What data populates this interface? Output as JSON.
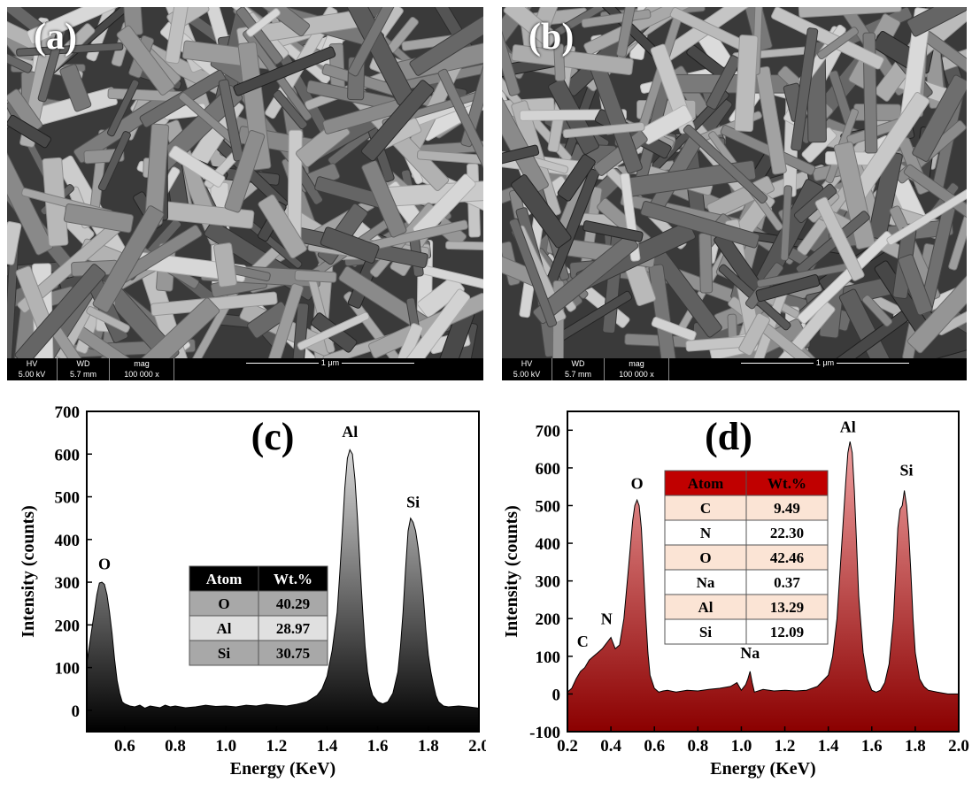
{
  "sem_panels": [
    {
      "label": "(a)",
      "databar": {
        "hv_label": "HV",
        "hv_value": "5.00 kV",
        "wd_label": "WD",
        "wd_value": "5.7 mm",
        "mag_label": "mag",
        "mag_value": "100 000 x",
        "scale": "1 μm"
      }
    },
    {
      "label": "(b)",
      "databar": {
        "hv_label": "HV",
        "hv_value": "5.00 kV",
        "wd_label": "WD",
        "wd_value": "5.7 mm",
        "mag_label": "mag",
        "mag_value": "100 000 x",
        "scale": "1 μm"
      }
    }
  ],
  "chart_data": [
    {
      "type": "area",
      "panel": "(c)",
      "xlabel": "Energy (KeV)",
      "ylabel": "Intensity (counts)",
      "xlim": [
        0.45,
        2.0
      ],
      "ylim": [
        -50,
        700
      ],
      "xticks": [
        0.6,
        0.8,
        1.0,
        1.2,
        1.4,
        1.6,
        1.8,
        2.0
      ],
      "yticks": [
        0,
        100,
        200,
        300,
        400,
        500,
        600,
        700
      ],
      "fill": "gray-gradient",
      "colors": {
        "top": "#d8d8d8",
        "bottom": "#000000",
        "stroke": "#000000"
      },
      "x": [
        0.45,
        0.46,
        0.47,
        0.48,
        0.49,
        0.5,
        0.51,
        0.52,
        0.53,
        0.54,
        0.55,
        0.56,
        0.57,
        0.58,
        0.59,
        0.6,
        0.62,
        0.64,
        0.66,
        0.68,
        0.7,
        0.72,
        0.74,
        0.76,
        0.78,
        0.8,
        0.84,
        0.88,
        0.92,
        0.96,
        1.0,
        1.04,
        1.08,
        1.12,
        1.16,
        1.2,
        1.24,
        1.28,
        1.32,
        1.36,
        1.38,
        1.4,
        1.42,
        1.44,
        1.45,
        1.46,
        1.47,
        1.48,
        1.49,
        1.5,
        1.51,
        1.52,
        1.53,
        1.54,
        1.55,
        1.56,
        1.57,
        1.58,
        1.6,
        1.62,
        1.64,
        1.66,
        1.68,
        1.69,
        1.7,
        1.71,
        1.72,
        1.73,
        1.74,
        1.75,
        1.76,
        1.77,
        1.78,
        1.79,
        1.8,
        1.81,
        1.82,
        1.83,
        1.84,
        1.86,
        1.88,
        1.92,
        1.96,
        2.0
      ],
      "y": [
        110,
        150,
        190,
        230,
        270,
        298,
        300,
        295,
        270,
        230,
        180,
        120,
        70,
        40,
        20,
        15,
        10,
        8,
        12,
        5,
        10,
        8,
        6,
        12,
        8,
        10,
        6,
        8,
        12,
        9,
        10,
        8,
        12,
        10,
        14,
        12,
        10,
        14,
        20,
        35,
        50,
        80,
        140,
        230,
        320,
        420,
        520,
        590,
        610,
        600,
        540,
        450,
        340,
        240,
        150,
        90,
        55,
        35,
        20,
        15,
        20,
        40,
        90,
        150,
        230,
        330,
        420,
        450,
        440,
        420,
        380,
        330,
        270,
        190,
        130,
        90,
        60,
        35,
        20,
        10,
        8,
        10,
        8,
        5
      ],
      "peak_labels": [
        {
          "text": "O",
          "x": 0.52,
          "y": 330
        },
        {
          "text": "Al",
          "x": 1.49,
          "y": 640
        },
        {
          "text": "Si",
          "x": 1.74,
          "y": 475
        }
      ],
      "table": {
        "headers": [
          "Atom",
          "Wt.%"
        ],
        "rows": [
          [
            "O",
            "40.29"
          ],
          [
            "Al",
            "28.97"
          ],
          [
            "Si",
            "30.75"
          ]
        ],
        "colors": {
          "header_bg": "#000000",
          "header_fg": "#ffffff",
          "row_bg": [
            "#a8a8a8",
            "#e0e0e0",
            "#a8a8a8"
          ]
        }
      }
    },
    {
      "type": "area",
      "panel": "(d)",
      "xlabel": "Energy (KeV)",
      "ylabel": "Intensity (counts)",
      "xlim": [
        0.2,
        2.0
      ],
      "ylim": [
        -100,
        750
      ],
      "xticks": [
        0.2,
        0.4,
        0.6,
        0.8,
        1.0,
        1.2,
        1.4,
        1.6,
        1.8,
        2.0
      ],
      "yticks": [
        -100,
        0,
        100,
        200,
        300,
        400,
        500,
        600,
        700
      ],
      "fill": "red-gradient",
      "colors": {
        "top": "#f0a0a0",
        "bottom": "#8b0000",
        "stroke": "#000000"
      },
      "x": [
        0.2,
        0.22,
        0.24,
        0.26,
        0.28,
        0.3,
        0.32,
        0.34,
        0.36,
        0.38,
        0.4,
        0.42,
        0.44,
        0.46,
        0.48,
        0.5,
        0.51,
        0.52,
        0.53,
        0.54,
        0.55,
        0.56,
        0.57,
        0.58,
        0.6,
        0.62,
        0.64,
        0.66,
        0.7,
        0.75,
        0.8,
        0.85,
        0.9,
        0.95,
        0.98,
        1.0,
        1.02,
        1.03,
        1.04,
        1.05,
        1.06,
        1.1,
        1.15,
        1.2,
        1.25,
        1.3,
        1.35,
        1.4,
        1.42,
        1.44,
        1.46,
        1.48,
        1.49,
        1.5,
        1.51,
        1.52,
        1.53,
        1.54,
        1.56,
        1.58,
        1.6,
        1.62,
        1.64,
        1.66,
        1.68,
        1.7,
        1.71,
        1.72,
        1.73,
        1.74,
        1.75,
        1.76,
        1.77,
        1.78,
        1.79,
        1.8,
        1.82,
        1.84,
        1.86,
        1.9,
        1.95,
        2.0
      ],
      "y": [
        5,
        15,
        40,
        60,
        70,
        90,
        100,
        110,
        120,
        135,
        150,
        120,
        130,
        200,
        330,
        460,
        500,
        515,
        500,
        440,
        330,
        210,
        110,
        50,
        15,
        5,
        8,
        10,
        5,
        10,
        8,
        12,
        15,
        20,
        30,
        10,
        25,
        40,
        60,
        30,
        5,
        12,
        8,
        10,
        8,
        10,
        20,
        50,
        100,
        200,
        380,
        560,
        640,
        670,
        640,
        540,
        400,
        260,
        110,
        40,
        10,
        5,
        10,
        30,
        80,
        200,
        320,
        440,
        490,
        500,
        540,
        500,
        430,
        320,
        200,
        110,
        40,
        20,
        10,
        5,
        0,
        0
      ],
      "peak_labels": [
        {
          "text": "C",
          "x": 0.27,
          "y": 125
        },
        {
          "text": "N",
          "x": 0.38,
          "y": 185
        },
        {
          "text": "O",
          "x": 0.52,
          "y": 545
        },
        {
          "text": "Na",
          "x": 1.04,
          "y": 95
        },
        {
          "text": "Al",
          "x": 1.49,
          "y": 695
        },
        {
          "text": "Si",
          "x": 1.76,
          "y": 580
        }
      ],
      "table": {
        "headers": [
          "Atom",
          "Wt.%"
        ],
        "rows": [
          [
            "C",
            "9.49"
          ],
          [
            "N",
            "22.30"
          ],
          [
            "O",
            "42.46"
          ],
          [
            "Na",
            "0.37"
          ],
          [
            "Al",
            "13.29"
          ],
          [
            "Si",
            "12.09"
          ]
        ],
        "colors": {
          "header_bg": "#c00000",
          "header_fg": "#000000",
          "row_bg": [
            "#fbe4d5",
            "#ffffff",
            "#fbe4d5",
            "#ffffff",
            "#fbe4d5",
            "#ffffff"
          ]
        }
      }
    }
  ]
}
